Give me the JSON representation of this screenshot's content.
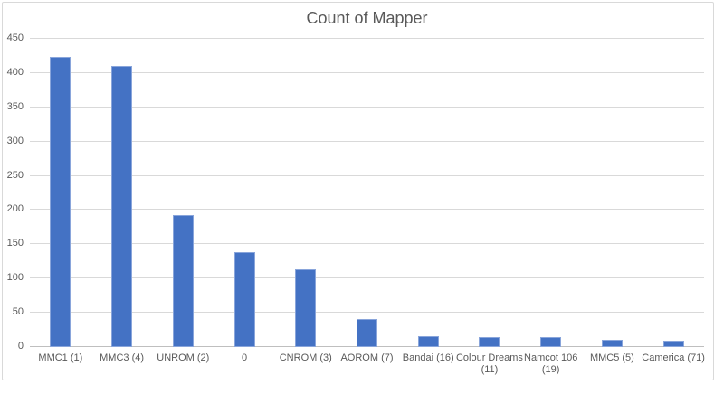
{
  "chart_data": {
    "type": "bar",
    "title": "Count of Mapper",
    "categories": [
      "MMC1 (1)",
      "MMC3 (4)",
      "UNROM (2)",
      "0",
      "CNROM (3)",
      "AOROM (7)",
      "Bandai (16)",
      "Colour Dreams (11)",
      "Namcot 106 (19)",
      "MMC5 (5)",
      "Camerica (71)"
    ],
    "values": [
      423,
      411,
      193,
      139,
      114,
      41,
      16,
      14,
      15,
      11,
      9
    ],
    "xlabel": "",
    "ylabel": "",
    "ylim": [
      0,
      450
    ],
    "ytick_step": 50,
    "yticks": [
      0,
      50,
      100,
      150,
      200,
      250,
      300,
      350,
      400,
      450
    ],
    "grid": true,
    "legend": false,
    "colors": {
      "bar_fill": "#4472C4",
      "bar_border": "#89A5DB",
      "gridline": "#D9D9D9",
      "axis_line": "#BFBFBF",
      "text": "#595959",
      "frame_border": "#D9D9D9",
      "background": "#FFFFFF"
    }
  }
}
